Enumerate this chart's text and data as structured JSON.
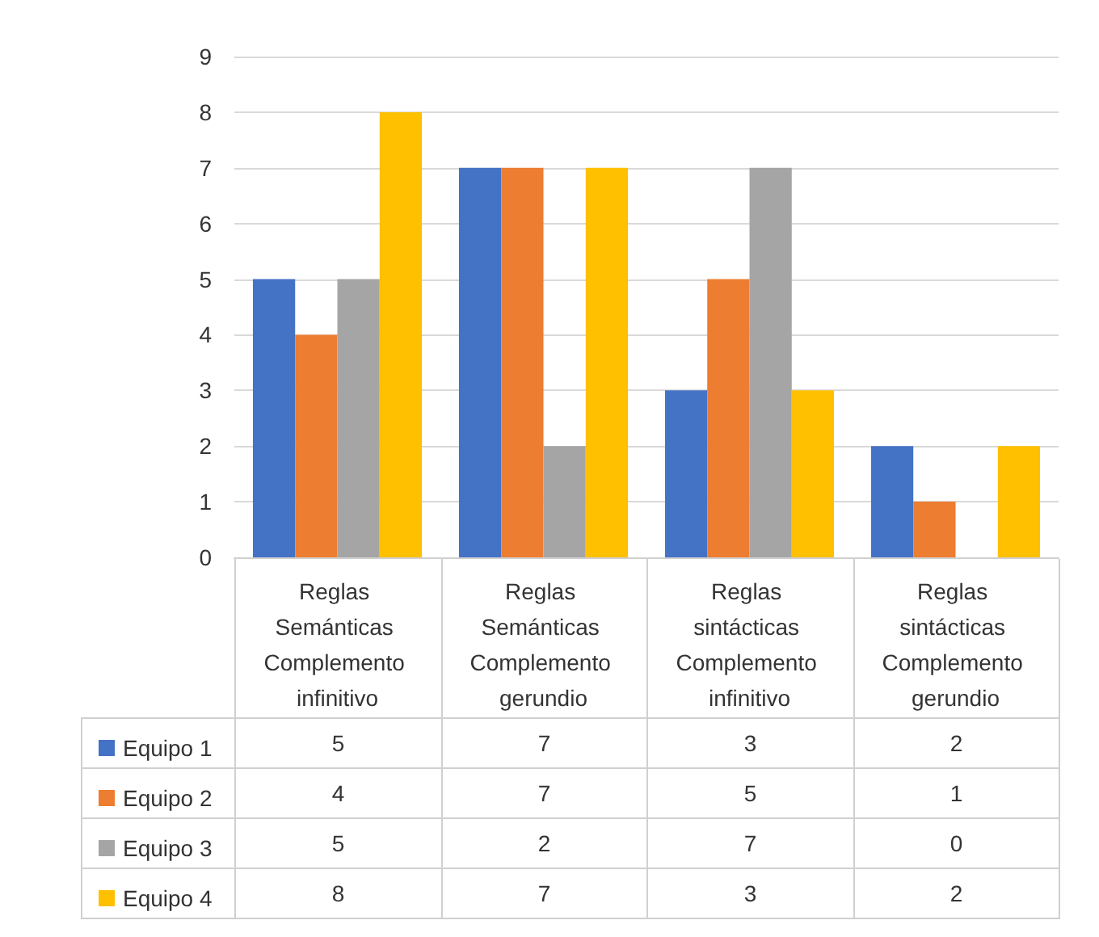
{
  "chart_data": {
    "type": "bar",
    "categories": [
      "Reglas Semánticas Complemento infinitivo",
      "Reglas Semánticas Complemento gerundio",
      "Reglas sintácticas Complemento infinitivo",
      "Reglas sintácticas Complemento gerundio"
    ],
    "series": [
      {
        "name": "Equipo 1",
        "color": "#4472c4",
        "values": [
          5,
          7,
          3,
          2
        ]
      },
      {
        "name": "Equipo 2",
        "color": "#ed7d31",
        "values": [
          4,
          7,
          5,
          1
        ]
      },
      {
        "name": "Equipo 3",
        "color": "#a5a5a5",
        "values": [
          5,
          2,
          7,
          0
        ]
      },
      {
        "name": "Equipo 4",
        "color": "#ffc000",
        "values": [
          8,
          7,
          3,
          2
        ]
      }
    ],
    "ylim": [
      0,
      9
    ],
    "yticks": [
      0,
      1,
      2,
      3,
      4,
      5,
      6,
      7,
      8,
      9
    ],
    "grid": "y",
    "legend": "bottom left",
    "data_labels": true
  }
}
